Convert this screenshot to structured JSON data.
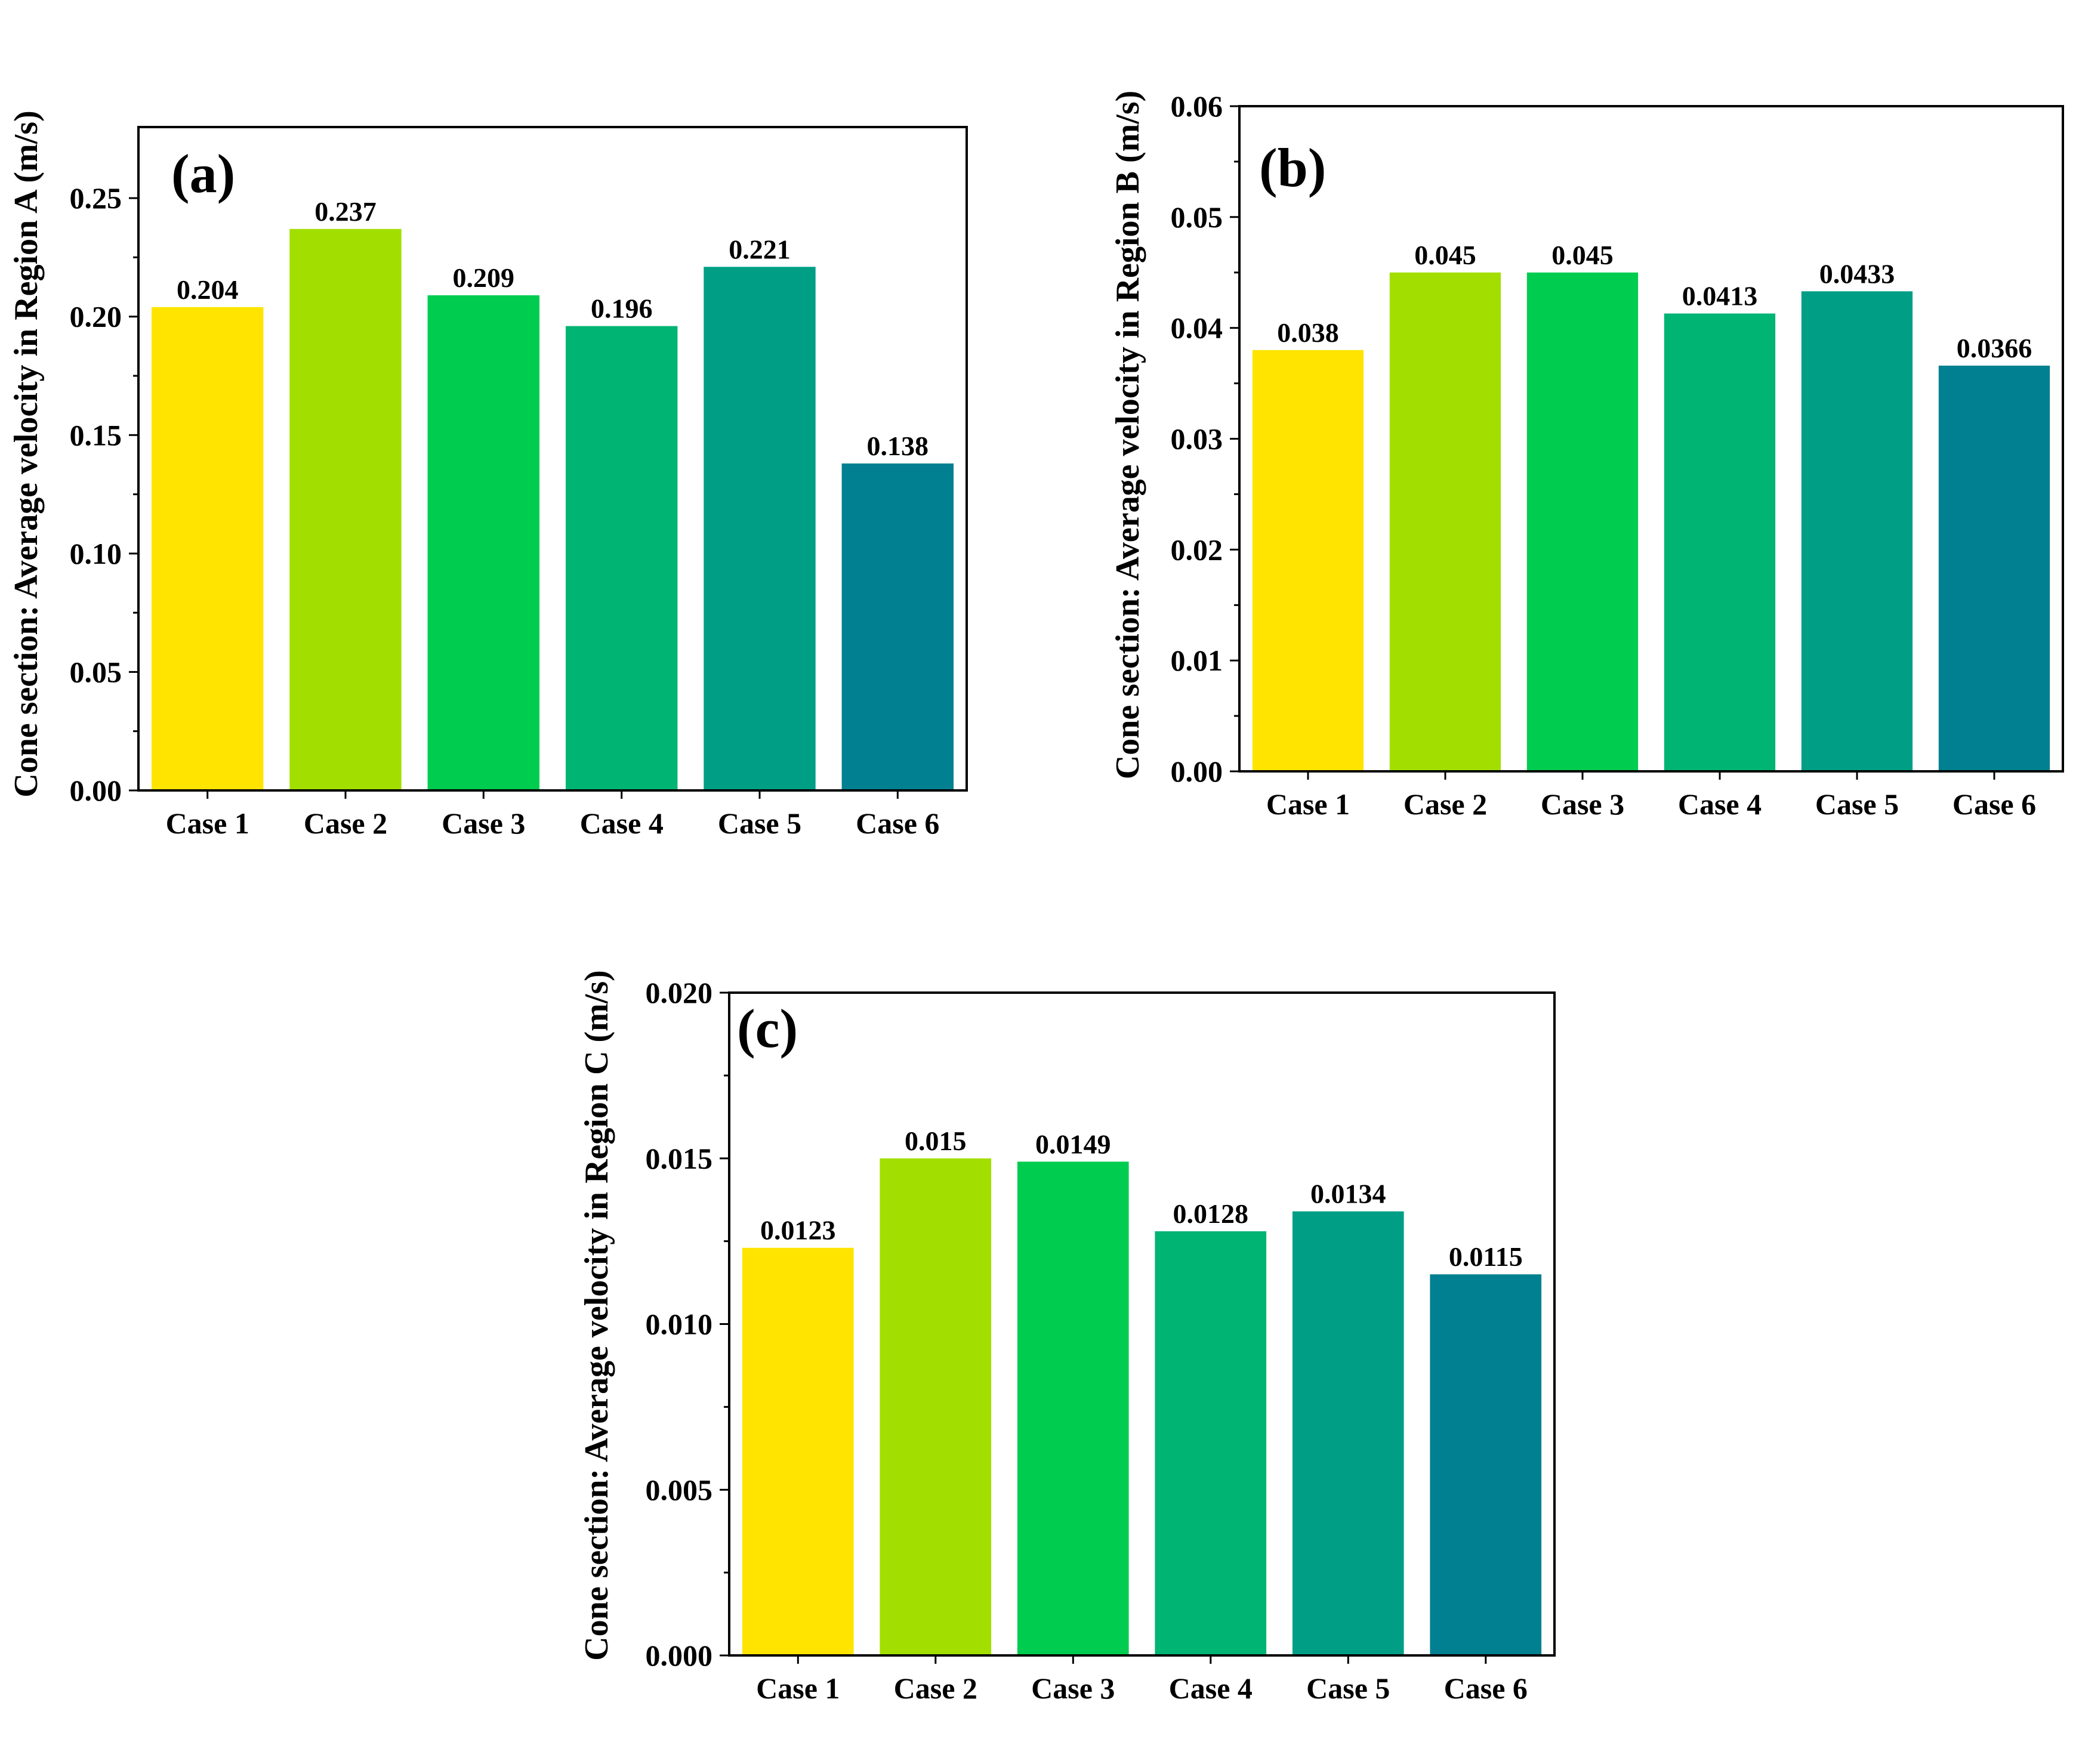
{
  "chart_data": [
    {
      "type": "bar",
      "panel_label": "(a)",
      "title": "",
      "xlabel": "",
      "ylabel": "Cone section: Average velocity  in Region A (m/s)",
      "categories": [
        "Case 1",
        "Case 2",
        "Case 3",
        "Case 4",
        "Case 5",
        "Case 6"
      ],
      "values": [
        0.204,
        0.237,
        0.209,
        0.196,
        0.221,
        0.138
      ],
      "value_labels": [
        "0.204",
        "0.237",
        "0.209",
        "0.196",
        "0.221",
        "0.138"
      ],
      "ylim": [
        0,
        0.28
      ],
      "yticks": [
        0,
        0.05,
        0.1,
        0.15,
        0.2,
        0.25
      ],
      "ytick_labels": [
        "0.00",
        "0.05",
        "0.10",
        "0.15",
        "0.20",
        "0.25"
      ],
      "colors": [
        "#FFE400",
        "#A2DF00",
        "#00CC4F",
        "#00B473",
        "#009F85",
        "#008090"
      ]
    },
    {
      "type": "bar",
      "panel_label": "(b)",
      "title": "",
      "xlabel": "",
      "ylabel": "Cone section: Average velocity  in Region B (m/s)",
      "categories": [
        "Case 1",
        "Case 2",
        "Case 3",
        "Case 4",
        "Case 5",
        "Case 6"
      ],
      "values": [
        0.038,
        0.045,
        0.045,
        0.0413,
        0.0433,
        0.0366
      ],
      "value_labels": [
        "0.038",
        "0.045",
        "0.045",
        "0.0413",
        "0.0433",
        "0.0366"
      ],
      "ylim": [
        0,
        0.06
      ],
      "yticks": [
        0,
        0.01,
        0.02,
        0.03,
        0.04,
        0.05,
        0.06
      ],
      "ytick_labels": [
        "0.00",
        "0.01",
        "0.02",
        "0.03",
        "0.04",
        "0.05",
        "0.06"
      ],
      "colors": [
        "#FFE400",
        "#A2DF00",
        "#00CC4F",
        "#00B473",
        "#009F85",
        "#008090"
      ]
    },
    {
      "type": "bar",
      "panel_label": "(c)",
      "title": "",
      "xlabel": "",
      "ylabel": "Cone section: Average velocity  in Region C (m/s)",
      "categories": [
        "Case 1",
        "Case 2",
        "Case 3",
        "Case 4",
        "Case 5",
        "Case 6"
      ],
      "values": [
        0.0123,
        0.015,
        0.0149,
        0.0128,
        0.0134,
        0.0115
      ],
      "value_labels": [
        "0.0123",
        "0.015",
        "0.0149",
        "0.0128",
        "0.0134",
        "0.0115"
      ],
      "ylim": [
        0,
        0.02
      ],
      "yticks": [
        0,
        0.005,
        0.01,
        0.015,
        0.02
      ],
      "ytick_labels": [
        "0.000",
        "0.005",
        "0.010",
        "0.015",
        "0.020"
      ],
      "colors": [
        "#FFE400",
        "#A2DF00",
        "#00CC4F",
        "#00B473",
        "#009F85",
        "#008090"
      ]
    }
  ]
}
